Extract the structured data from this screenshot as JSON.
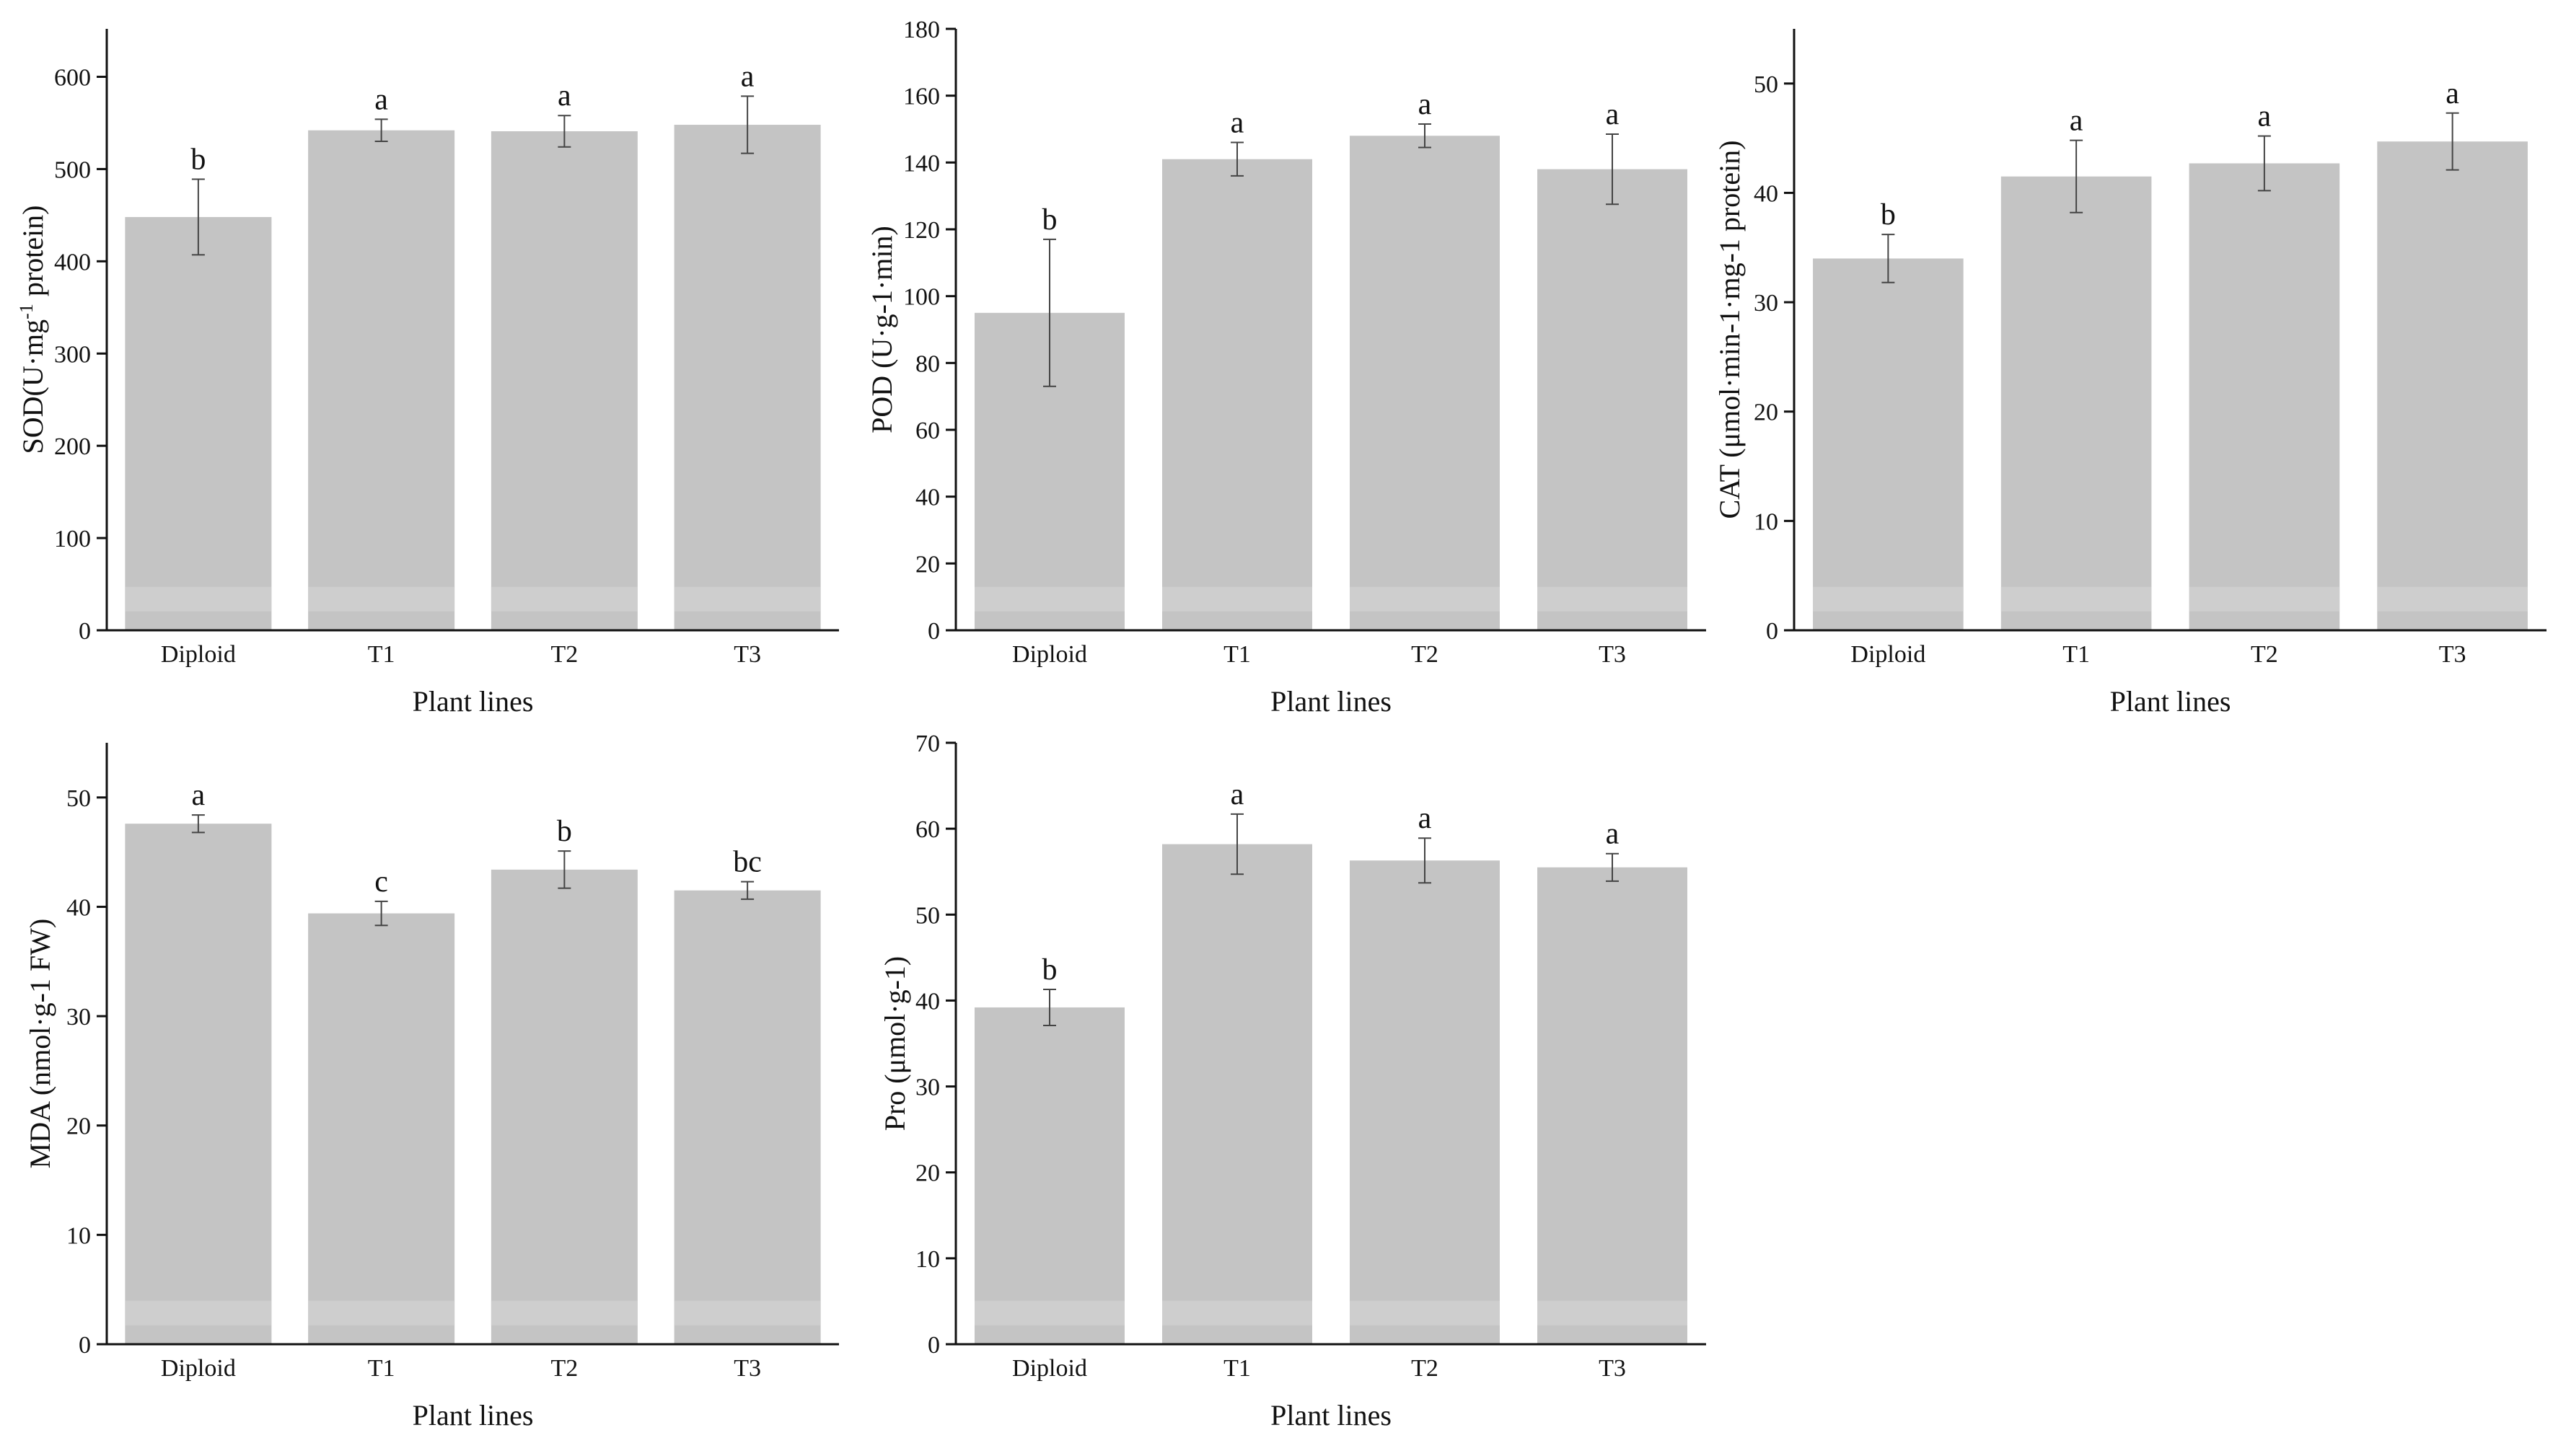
{
  "colors": {
    "bar": "#c4c4c4",
    "bar_light": "#d2d2d2",
    "axis": "#111111",
    "error": "#444444"
  },
  "chart_data": [
    {
      "id": "sod",
      "type": "bar",
      "categories": [
        "Diploid",
        "T1",
        "T2",
        "T3"
      ],
      "values": [
        448,
        542,
        541,
        548
      ],
      "errors": [
        41,
        12,
        17,
        31
      ],
      "significance": [
        "b",
        "a",
        "a",
        "a"
      ],
      "ylim": [
        0,
        652
      ],
      "yticks": [
        0,
        100,
        200,
        300,
        400,
        500,
        600
      ],
      "xlabel": "Plant lines",
      "ylabel_parts": {
        "prefix": "SOD(U·mg",
        "sup": "-1",
        "suffix": " protein)"
      }
    },
    {
      "id": "pod",
      "type": "bar",
      "categories": [
        "Diploid",
        "T1",
        "T2",
        "T3"
      ],
      "values": [
        95,
        141,
        148,
        138
      ],
      "errors": [
        22,
        5,
        3.5,
        10.5
      ],
      "significance": [
        "b",
        "a",
        "a",
        "a"
      ],
      "ylim": [
        0,
        180
      ],
      "yticks": [
        0,
        20,
        40,
        60,
        80,
        100,
        120,
        140,
        160,
        180
      ],
      "xlabel": "Plant lines",
      "ylabel": "POD (U·g-1·min)"
    },
    {
      "id": "cat",
      "type": "bar",
      "categories": [
        "Diploid",
        "T1",
        "T2",
        "T3"
      ],
      "values": [
        34,
        41.5,
        42.7,
        44.7
      ],
      "errors": [
        2.2,
        3.3,
        2.5,
        2.6
      ],
      "significance": [
        "b",
        "a",
        "a",
        "a"
      ],
      "ylim": [
        0,
        55
      ],
      "yticks": [
        0,
        10,
        20,
        30,
        40,
        50
      ],
      "xlabel": "Plant lines",
      "ylabel": "CAT (μmol·min-1·mg-1 protein)"
    },
    {
      "id": "mda",
      "type": "bar",
      "categories": [
        "Diploid",
        "T1",
        "T2",
        "T3"
      ],
      "values": [
        47.6,
        39.4,
        43.4,
        41.5
      ],
      "errors": [
        0.8,
        1.1,
        1.7,
        0.8
      ],
      "significance": [
        "a",
        "c",
        "b",
        "bc"
      ],
      "ylim": [
        0,
        55
      ],
      "yticks": [
        0,
        10,
        20,
        30,
        40,
        50
      ],
      "xlabel": "Plant lines",
      "ylabel": "MDA (nmol·g-1 FW)"
    },
    {
      "id": "pro",
      "type": "bar",
      "categories": [
        "Diploid",
        "T1",
        "T2",
        "T3"
      ],
      "values": [
        39.2,
        58.2,
        56.3,
        55.5
      ],
      "errors": [
        2.1,
        3.5,
        2.6,
        1.6
      ],
      "significance": [
        "b",
        "a",
        "a",
        "a"
      ],
      "ylim": [
        0,
        70
      ],
      "yticks": [
        0,
        10,
        20,
        30,
        40,
        50,
        60,
        70
      ],
      "xlabel": "Plant lines",
      "ylabel": "Pro (μmol·g-1)"
    }
  ]
}
